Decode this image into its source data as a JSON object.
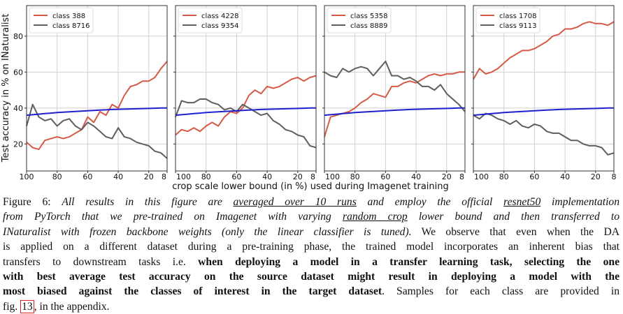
{
  "figure": {
    "xlabel": "crop scale lower bound (in %) used during Imagenet training",
    "ylabel": "Test accuracy in % on INaturalist"
  },
  "colors": {
    "red": "#d65a46",
    "gray": "#5e5e5e",
    "blue": "#1f1fcf",
    "grid": "#d0d0d0"
  },
  "chart_data": [
    {
      "type": "line",
      "xlim": [
        100,
        8
      ],
      "ylim": [
        5,
        97
      ],
      "xticks": [
        "100",
        "80",
        "60",
        "40",
        "20",
        "8"
      ],
      "yticks": [
        "20",
        "40",
        "60",
        "80"
      ],
      "grid": true,
      "legend": "top-left",
      "x": [
        100,
        96,
        92,
        88,
        84,
        80,
        76,
        72,
        68,
        64,
        60,
        56,
        52,
        48,
        44,
        40,
        36,
        32,
        28,
        24,
        20,
        16,
        12,
        8
      ],
      "series": [
        {
          "name": "class 388",
          "color": "red",
          "values": [
            21,
            18,
            17,
            22,
            23,
            24,
            23,
            24,
            26,
            28,
            35,
            32,
            38,
            36,
            42,
            40,
            47,
            52,
            53,
            55,
            55,
            57,
            62,
            66
          ]
        },
        {
          "name": "class 8716",
          "color": "gray",
          "values": [
            30,
            42,
            35,
            33,
            34,
            30,
            33,
            34,
            30,
            28,
            32,
            30,
            27,
            24,
            23,
            29,
            24,
            23,
            21,
            20,
            19,
            16,
            15,
            12
          ]
        },
        {
          "name": "average",
          "color": "blue",
          "legend": false,
          "values": [
            36,
            36.3,
            36.6,
            36.9,
            37.2,
            37.5,
            37.7,
            37.9,
            38.1,
            38.3,
            38.5,
            38.7,
            38.9,
            39.0,
            39.2,
            39.3,
            39.4,
            39.5,
            39.6,
            39.7,
            39.8,
            39.9,
            40,
            40
          ]
        }
      ]
    },
    {
      "type": "line",
      "xlim": [
        100,
        8
      ],
      "ylim": [
        5,
        97
      ],
      "xticks": [
        "100",
        "80",
        "60",
        "40",
        "20",
        "8"
      ],
      "yticks": [],
      "grid": true,
      "legend": "top-left",
      "x": [
        100,
        96,
        92,
        88,
        84,
        80,
        76,
        72,
        68,
        64,
        60,
        56,
        52,
        48,
        44,
        40,
        36,
        32,
        28,
        24,
        20,
        16,
        12,
        8
      ],
      "series": [
        {
          "name": "class 4228",
          "color": "red",
          "values": [
            25,
            28,
            27,
            29,
            27,
            30,
            32,
            30,
            35,
            38,
            37,
            40,
            47,
            50,
            48,
            52,
            51,
            52,
            54,
            56,
            57,
            55,
            57,
            58
          ]
        },
        {
          "name": "class 9354",
          "color": "gray",
          "values": [
            35,
            44,
            43,
            43,
            45,
            45,
            43,
            42,
            39,
            40,
            38,
            42,
            40,
            38,
            36,
            37,
            33,
            31,
            28,
            27,
            25,
            24,
            19,
            18
          ]
        },
        {
          "name": "average",
          "color": "blue",
          "legend": false,
          "values": [
            36,
            36.3,
            36.6,
            36.9,
            37.2,
            37.5,
            37.7,
            37.9,
            38.1,
            38.3,
            38.5,
            38.7,
            38.9,
            39.0,
            39.2,
            39.3,
            39.4,
            39.5,
            39.6,
            39.7,
            39.8,
            39.9,
            40,
            40
          ]
        }
      ]
    },
    {
      "type": "line",
      "xlim": [
        100,
        8
      ],
      "ylim": [
        5,
        97
      ],
      "xticks": [
        "100",
        "80",
        "60",
        "40",
        "20",
        "8"
      ],
      "yticks": [],
      "grid": true,
      "legend": "top-left",
      "x": [
        100,
        96,
        92,
        88,
        84,
        80,
        76,
        72,
        68,
        64,
        60,
        56,
        52,
        48,
        44,
        40,
        36,
        32,
        28,
        24,
        20,
        16,
        12,
        8
      ],
      "series": [
        {
          "name": "class 5358",
          "color": "red",
          "values": [
            24,
            35,
            36,
            37,
            38,
            40,
            43,
            45,
            48,
            47,
            46,
            52,
            52,
            54,
            55,
            54,
            56,
            58,
            59,
            58,
            59,
            59,
            60,
            60
          ]
        },
        {
          "name": "class 8889",
          "color": "gray",
          "values": [
            60,
            58,
            57,
            62,
            60,
            62,
            63,
            62,
            58,
            62,
            66,
            58,
            58,
            56,
            57,
            55,
            52,
            52,
            50,
            53,
            48,
            45,
            42,
            38
          ]
        },
        {
          "name": "average",
          "color": "blue",
          "legend": false,
          "values": [
            36,
            36.3,
            36.6,
            36.9,
            37.2,
            37.5,
            37.7,
            37.9,
            38.1,
            38.3,
            38.5,
            38.7,
            38.9,
            39.0,
            39.2,
            39.3,
            39.4,
            39.5,
            39.6,
            39.7,
            39.8,
            39.9,
            40,
            40
          ]
        }
      ]
    },
    {
      "type": "line",
      "xlim": [
        100,
        8
      ],
      "ylim": [
        5,
        97
      ],
      "xticks": [
        "100",
        "80",
        "60",
        "40",
        "20",
        "8"
      ],
      "yticks": [],
      "grid": true,
      "legend": "top-left",
      "x": [
        100,
        96,
        92,
        88,
        84,
        80,
        76,
        72,
        68,
        64,
        60,
        56,
        52,
        48,
        44,
        40,
        36,
        32,
        28,
        24,
        20,
        16,
        12,
        8
      ],
      "series": [
        {
          "name": "class 1708",
          "color": "red",
          "values": [
            56,
            62,
            59,
            60,
            62,
            65,
            68,
            70,
            72,
            72,
            73,
            75,
            77,
            80,
            81,
            84,
            84,
            85,
            87,
            88,
            87,
            87,
            86,
            88
          ]
        },
        {
          "name": "class 9113",
          "color": "gray",
          "values": [
            36,
            34,
            37,
            36,
            34,
            33,
            31,
            33,
            30,
            29,
            31,
            30,
            27,
            26,
            26,
            24,
            22,
            22,
            20,
            19,
            19,
            18,
            14,
            15
          ]
        },
        {
          "name": "average",
          "color": "blue",
          "legend": false,
          "values": [
            36,
            36.3,
            36.6,
            36.9,
            37.2,
            37.5,
            37.7,
            37.9,
            38.1,
            38.3,
            38.5,
            38.7,
            38.9,
            39.0,
            39.2,
            39.3,
            39.4,
            39.5,
            39.6,
            39.7,
            39.8,
            39.9,
            40,
            40
          ]
        }
      ]
    }
  ],
  "caption": {
    "l1": {
      "a": "Figure 6: ",
      "b": "All results in this figure are ",
      "c": " averaged over 10 runs",
      "d": " and employ the official ",
      "e": "resnet50",
      "f": " implementation"
    },
    "l2": {
      "a": "from PyTorch that we pre-trained on Imagenet with varying ",
      "b": "random crop",
      "c": " lower bound and then transferred to"
    },
    "l3": {
      "a": "INaturalist with frozen backbone weights (only the linear classifier is tuned).",
      "b": " We observe that even when the DA"
    },
    "l4": {
      "a": "is applied on a different dataset during a pre-training phase, the trained model incorporates an inherent bias that"
    },
    "l5": {
      "a": "transfers to downstream tasks i.e. ",
      "b": "when deploying a model in a transfer learning task, selecting the one"
    },
    "l6": {
      "a": "with best average test accuracy on the source dataset might result in deploying a model with the"
    },
    "l7": {
      "a": "most biased against the classes of interest in the target dataset",
      "b": ". Samples for each class are provided in"
    },
    "l8": {
      "a": "fig. ",
      "b": "13",
      "c": ", in the appendix."
    }
  }
}
